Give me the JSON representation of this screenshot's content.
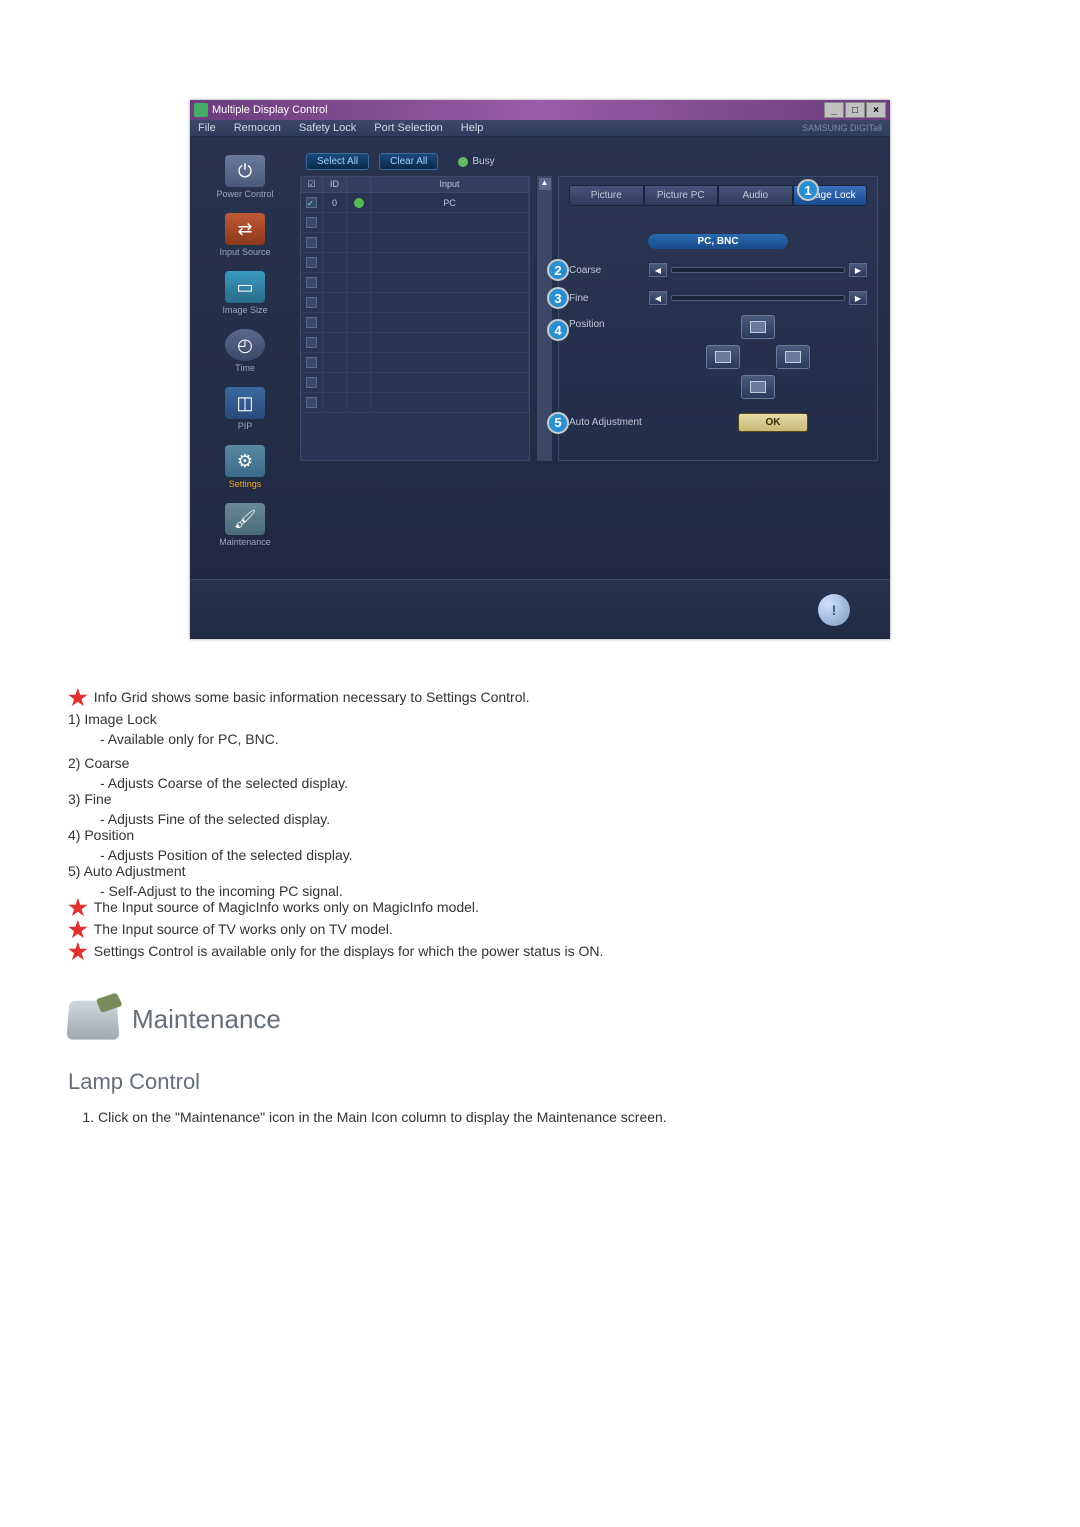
{
  "titlebar": {
    "title": "Multiple Display Control",
    "min": "_",
    "max": "□",
    "close": "×"
  },
  "menu": {
    "items": [
      "File",
      "Remocon",
      "Safety Lock",
      "Port Selection",
      "Help"
    ],
    "brand": "SAMSUNG DIGITall"
  },
  "sidebar": {
    "items": [
      {
        "label": "Power Control"
      },
      {
        "label": "Input Source"
      },
      {
        "label": "Image Size"
      },
      {
        "label": "Time"
      },
      {
        "label": "PIP"
      },
      {
        "label": "Settings"
      },
      {
        "label": "Maintenance"
      }
    ]
  },
  "buttons": {
    "select_all": "Select All",
    "clear_all": "Clear All",
    "busy": "Busy"
  },
  "grid": {
    "headers": {
      "check": "☑",
      "id": "ID",
      "status": "⏻",
      "input": "Input"
    },
    "row0": {
      "id": "0",
      "input": "PC"
    },
    "rows": 11
  },
  "tabs": {
    "picture": "Picture",
    "picture_pc": "Picture PC",
    "audio": "Audio",
    "image_lock": "Image Lock"
  },
  "panel": {
    "subheader": "PC, BNC",
    "coarse": "Coarse",
    "fine": "Fine",
    "position": "Position",
    "auto": "Auto Adjustment",
    "ok": "OK"
  },
  "badges": {
    "b1": "1",
    "b2": "2",
    "b3": "3",
    "b4": "4",
    "b5": "5"
  },
  "doc": {
    "info_grid": "Info Grid shows some basic information necessary to Settings Control.",
    "l1": "1)  Image Lock",
    "l1s": "- Available only for PC, BNC.",
    "l2": "2)  Coarse",
    "l2s": "- Adjusts Coarse of the selected display.",
    "l3": "3)  Fine",
    "l3s": "- Adjusts Fine of the selected display.",
    "l4": "4)  Position",
    "l4s": "- Adjusts Position of the selected display.",
    "l5": "5)  Auto Adjustment",
    "l5s": "- Self-Adjust to the incoming PC signal.",
    "n1": "The Input source of MagicInfo works only on MagicInfo model.",
    "n2": "The Input source of TV works only on TV model.",
    "n3": "Settings Control is available only for the displays for which the power status is ON.",
    "sec": "Maintenance",
    "sub": "Lamp Control",
    "step1": "Click on the \"Maintenance\" icon in the Main Icon column to display the Maintenance screen."
  }
}
